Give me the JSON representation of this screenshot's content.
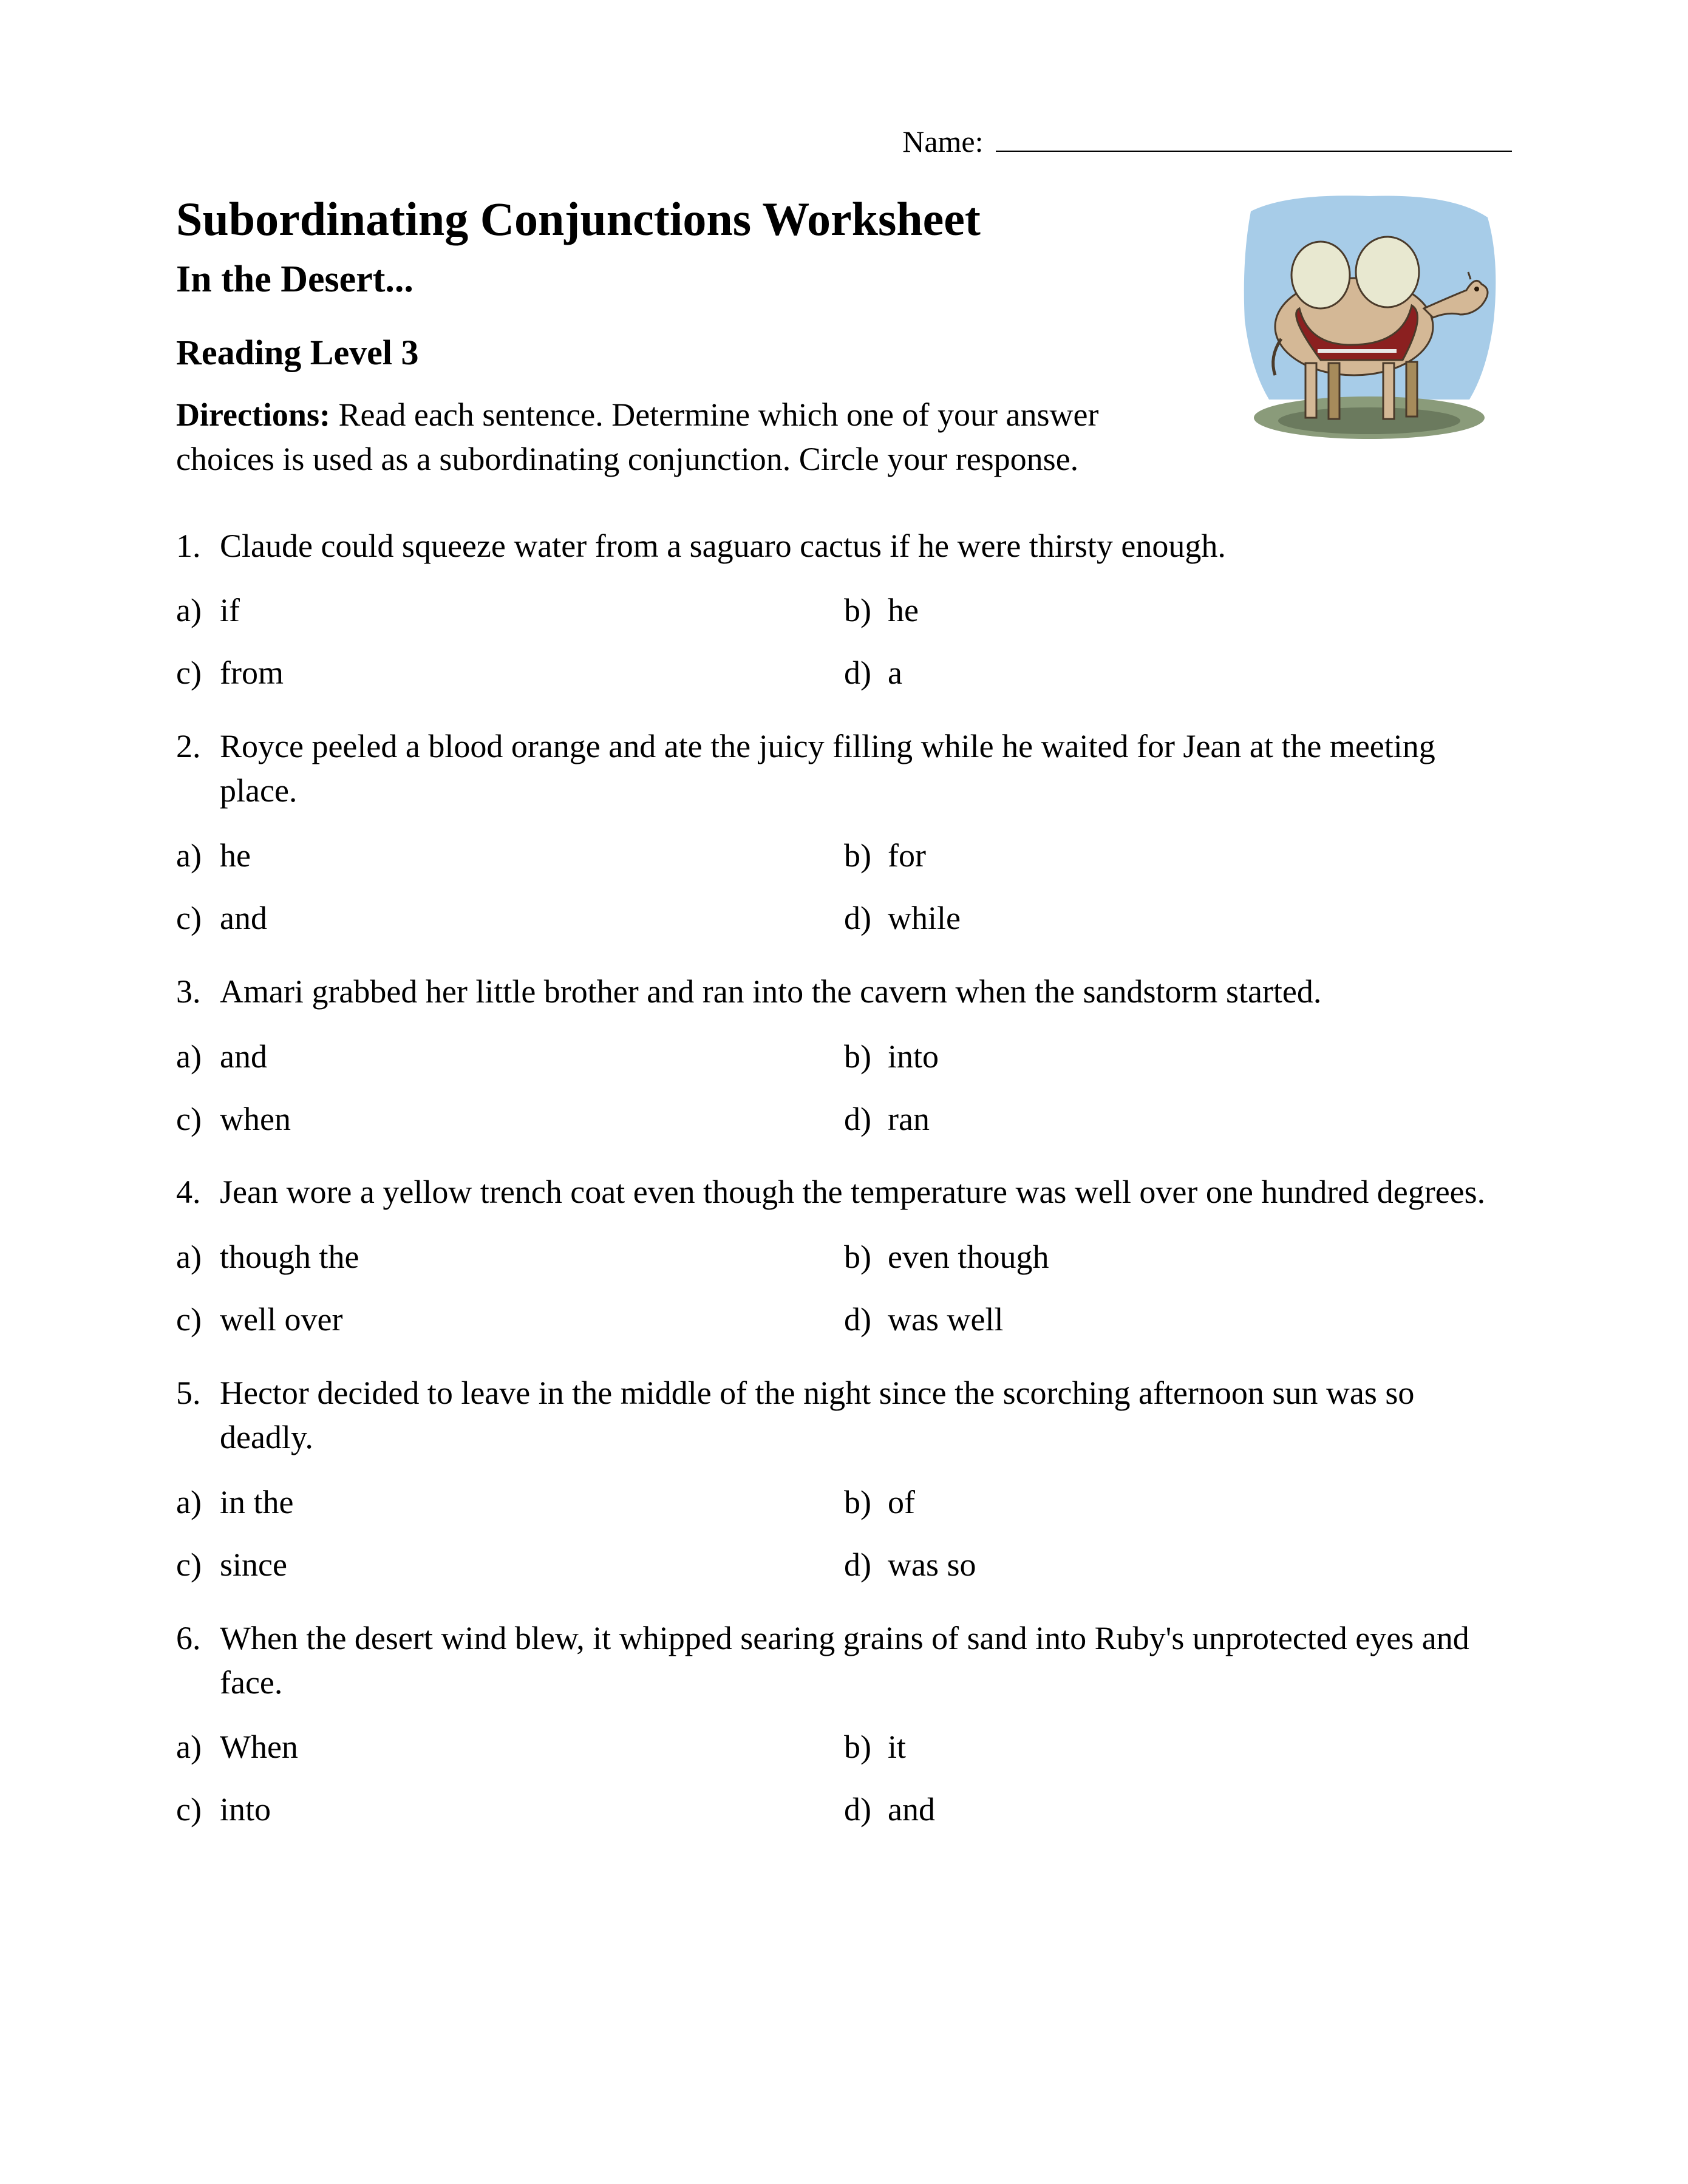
{
  "header": {
    "name_label": "Name:",
    "title": "Subordinating Conjunctions Worksheet",
    "subtitle": "In the Desert...",
    "level": "Reading Level 3",
    "directions_label": "Directions:",
    "directions_text": " Read each sentence. Determine which one of your answer choices is used as a subordinating conjunction. Circle your response."
  },
  "image": {
    "alt": "camel illustration",
    "colors": {
      "sky": "#a7cce8",
      "camel_body": "#d4b896",
      "camel_dark": "#a68b5b",
      "saddle": "#8b2020",
      "saddle_trim": "#e8e8e8",
      "ground": "#8a9b7a",
      "shadow": "#6b7a5e",
      "outline": "#4a3a2a"
    }
  },
  "questions": [
    {
      "num": "1.",
      "text": "Claude could squeeze water from a saguaro cactus if he were thirsty enough.",
      "choices": [
        {
          "letter": "a)",
          "text": "if"
        },
        {
          "letter": "b)",
          "text": "he"
        },
        {
          "letter": "c)",
          "text": "from"
        },
        {
          "letter": "d)",
          "text": "a"
        }
      ]
    },
    {
      "num": "2.",
      "text": "Royce peeled a blood orange and ate the juicy filling while he waited for Jean at the meeting place.",
      "choices": [
        {
          "letter": "a)",
          "text": "he"
        },
        {
          "letter": "b)",
          "text": "for"
        },
        {
          "letter": "c)",
          "text": "and"
        },
        {
          "letter": "d)",
          "text": "while"
        }
      ]
    },
    {
      "num": "3.",
      "text": "Amari grabbed her little brother and ran into the cavern when the sandstorm started.",
      "choices": [
        {
          "letter": "a)",
          "text": "and"
        },
        {
          "letter": "b)",
          "text": "into"
        },
        {
          "letter": "c)",
          "text": "when"
        },
        {
          "letter": "d)",
          "text": "ran"
        }
      ]
    },
    {
      "num": "4.",
      "text": "Jean wore a yellow trench coat even though the temperature was well over one hundred degrees.",
      "choices": [
        {
          "letter": "a)",
          "text": "though the"
        },
        {
          "letter": "b)",
          "text": "even though"
        },
        {
          "letter": "c)",
          "text": "well over"
        },
        {
          "letter": "d)",
          "text": "was well"
        }
      ]
    },
    {
      "num": "5.",
      "text": "Hector decided to leave in the middle of the night since the scorching afternoon sun was so deadly.",
      "choices": [
        {
          "letter": "a)",
          "text": "in the"
        },
        {
          "letter": "b)",
          "text": "of"
        },
        {
          "letter": "c)",
          "text": "since"
        },
        {
          "letter": "d)",
          "text": "was so"
        }
      ]
    },
    {
      "num": "6.",
      "text": "When the desert wind blew, it whipped searing grains of sand into Ruby's unprotected eyes and face.",
      "choices": [
        {
          "letter": "a)",
          "text": "When"
        },
        {
          "letter": "b)",
          "text": "it"
        },
        {
          "letter": "c)",
          "text": "into"
        },
        {
          "letter": "d)",
          "text": "and"
        }
      ]
    }
  ]
}
